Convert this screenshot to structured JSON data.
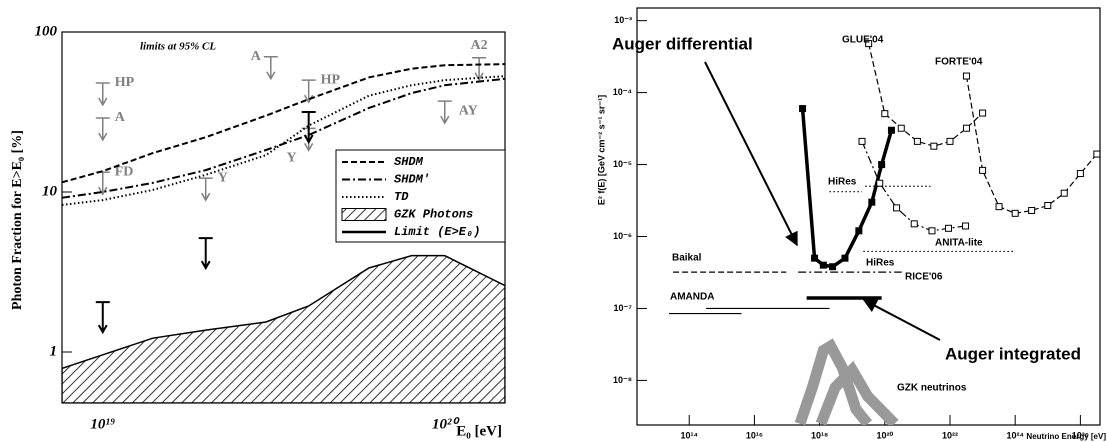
{
  "chart_data": [
    {
      "type": "line",
      "annotation": "limits at 95% CL",
      "xlabel": "E₀ [eV]",
      "ylabel": "Photon Fraction for E>E₀ [%]",
      "xscale": "log",
      "yscale": "log",
      "xlim": [
        7.6e+18,
        1.5e+20
      ],
      "ylim": [
        0.48,
        100
      ],
      "xticks": [
        {
          "value": 1e+19,
          "label": "10¹⁹"
        },
        {
          "value": 1e+20,
          "label": "10²⁰"
        }
      ],
      "yticks": [
        1,
        10,
        100
      ],
      "legend": "right",
      "x": [
        7.6e+18,
        1e+19,
        1.4e+19,
        2e+19,
        3e+19,
        4e+19,
        6e+19,
        8e+19,
        1e+20,
        1.5e+20
      ],
      "series": [
        {
          "name": "SHDM",
          "color": "#000000",
          "style": "dashed",
          "values": [
            11.5,
            13.5,
            17.5,
            22,
            30,
            38,
            52,
            59,
            62,
            63
          ]
        },
        {
          "name": "SHDM'",
          "color": "#000000",
          "style": "dashdot",
          "values": [
            9.2,
            10,
            11.4,
            13.7,
            18.3,
            22.7,
            33.5,
            41.5,
            46.5,
            51
          ]
        },
        {
          "name": "TD",
          "color": "#000000",
          "style": "dotted",
          "values": [
            8.3,
            8.9,
            10.3,
            12.8,
            17,
            26,
            40,
            46.5,
            50,
            53
          ]
        },
        {
          "name": "GZK Photons",
          "color": "#000000",
          "style": "hatched",
          "values": [
            0.79,
            0.96,
            1.22,
            1.37,
            1.54,
            1.94,
            3.35,
            4.0,
            4.0,
            2.6
          ]
        },
        {
          "name": "Limit (E>E₀)",
          "color": "#000000",
          "style": "limit",
          "x": [
            1e+19,
            2e+19,
            4e+19
          ],
          "values": [
            2.05,
            5.15,
            31.6
          ]
        }
      ],
      "other_limits": {
        "color": "#808080",
        "labels": [
          "HP",
          "A",
          "FD",
          "Y",
          "A",
          "HP",
          "Y",
          "A2",
          "AY"
        ],
        "x": [
          1e+19,
          1e+19,
          1e+19,
          2e+19,
          3.1e+19,
          4e+19,
          4e+19,
          1.26e+20,
          1e+20
        ],
        "values": [
          48,
          29,
          13.3,
          12.2,
          70,
          50,
          25,
          69,
          37
        ]
      }
    },
    {
      "type": "line",
      "xlabel": "Neutrino Energy [eV]",
      "ylabel": "E² f(E) [GeV cm⁻² s⁻¹ sr⁻¹]",
      "xscale": "log",
      "yscale": "log",
      "xlim": [
        2500000000000.0,
        4e+26
      ],
      "ylim": [
        2.4e-09,
        0.0015
      ],
      "xticks": [
        {
          "value": 100000000000000.0,
          "label": "10¹⁴"
        },
        {
          "value": 1e+16,
          "label": "10¹⁶"
        },
        {
          "value": 1e+18,
          "label": "10¹⁸"
        },
        {
          "value": 1e+20,
          "label": "10²⁰"
        },
        {
          "value": 1e+22,
          "label": "10²²"
        },
        {
          "value": 1e+24,
          "label": "10²⁴"
        },
        {
          "value": 1e+26,
          "label": "10²⁶"
        }
      ],
      "yticks": [
        {
          "value": 1e-08,
          "label": "10⁻⁸"
        },
        {
          "value": 1e-07,
          "label": "10⁻⁷"
        },
        {
          "value": 1e-06,
          "label": "10⁻⁶"
        },
        {
          "value": 1e-05,
          "label": "10⁻⁵"
        },
        {
          "value": 0.0001,
          "label": "10⁻⁴"
        },
        {
          "value": 0.001,
          "label": "10⁻³"
        }
      ],
      "series": [
        {
          "name": "Auger differential",
          "color": "#000000",
          "style": "thick",
          "marker": "filled-square",
          "x": [
            3e+17,
            7e+17,
            1.3e+18,
            2.5e+18,
            6e+18,
            1.6e+19,
            4e+19,
            8e+19,
            1.6e+20
          ],
          "values": [
            6e-05,
            5e-07,
            4e-07,
            3.8e-07,
            5e-07,
            1.2e-06,
            3e-06,
            1e-05,
            3e-05
          ]
        },
        {
          "name": "Auger integrated",
          "color": "#000000",
          "style": "thick",
          "x": [
            4e+17,
            8e+19
          ],
          "values": [
            1.4e-07,
            1.4e-07
          ]
        },
        {
          "name": "GLUE'04",
          "color": "#000000",
          "style": "dashed",
          "marker": "open-square",
          "x": [
            3.2e+19,
            1e+20,
            3.2e+20,
            1e+21,
            3.2e+21,
            1e+22,
            3.2e+22,
            1e+23
          ],
          "values": [
            0.00048,
            5.1e-05,
            3.2e-05,
            2.1e-05,
            1.8e-05,
            2.1e-05,
            3.2e-05,
            5.2e-05
          ]
        },
        {
          "name": "FORTE'04",
          "color": "#000000",
          "style": "dashed",
          "marker": "open-square",
          "x": [
            3.2e+22,
            1e+23,
            3.2e+23,
            1e+24,
            3.2e+24,
            1e+25,
            3.2e+25,
            1e+26,
            3.2e+26
          ],
          "values": [
            0.00017,
            8.3e-06,
            2.6e-06,
            2.1e-06,
            2.3e-06,
            2.7e-06,
            4e-06,
            7.5e-06,
            1.4e-05
          ]
        },
        {
          "name": "ANITA-lite",
          "color": "#000000",
          "style": "dashdot",
          "marker": "open-square",
          "x": [
            2e+19,
            7e+19,
            2.3e+20,
            8e+20,
            2.8e+21,
            9e+21,
            3e+22
          ],
          "values": [
            2.1e-05,
            5.5e-06,
            2.5e-06,
            1.5e-06,
            1.2e-06,
            1.3e-06,
            1.4e-06
          ]
        },
        {
          "name": "HiRes",
          "color": "#000000",
          "style": "dotted",
          "x": [
            2e+18,
            2e+19,
            2e+19,
            2.5e+19,
            2.5e+21
          ],
          "values": [
            4.2e-06,
            4.2e-06,
            null,
            5e-06,
            5e-06
          ]
        },
        {
          "name": "HiRes",
          "color": "#000000",
          "style": "dotted",
          "x": [
            2.2e+19,
            9e+23
          ],
          "values": [
            6.2e-07,
            6.2e-07
          ]
        },
        {
          "name": "RICE'06",
          "color": "#000000",
          "style": "dashdot",
          "x": [
            2.2e+17,
            3.3e+20
          ],
          "values": [
            3.2e-07,
            3.2e-07
          ]
        },
        {
          "name": "Baikal",
          "color": "#000000",
          "style": "dashed",
          "x": [
            32000000000000.0,
            9.5e+16
          ],
          "values": [
            3.2e-07,
            3.2e-07
          ]
        },
        {
          "name": "AMANDA",
          "color": "#000000",
          "style": "solid",
          "x": [
            24000000000000.0,
            4000000000000000.0,
            4000000000000000.0,
            330000000000000.0,
            2e+18
          ],
          "values": [
            8.5e-08,
            8.5e-08,
            null,
            1e-07,
            1e-07
          ]
        },
        {
          "name": "GZK neutrinos",
          "color": "#999999",
          "style": "band",
          "x": [
            2.5e+17,
            6e+17,
            1.3e+18,
            2.2e+18,
            5e+18,
            1.3e+19,
            3e+19,
            3e+19,
            1.1e+18,
            3e+18,
            1e+19,
            3e+19,
            2e+20
          ],
          "values": [
            2.5e-09,
            8e-09,
            2.6e-08,
            3e-08,
            1.5e-08,
            4e-09,
            2.5e-09,
            null,
            2.5e-09,
            8e-09,
            1.4e-08,
            6e-09,
            2.5e-09
          ]
        }
      ]
    }
  ]
}
